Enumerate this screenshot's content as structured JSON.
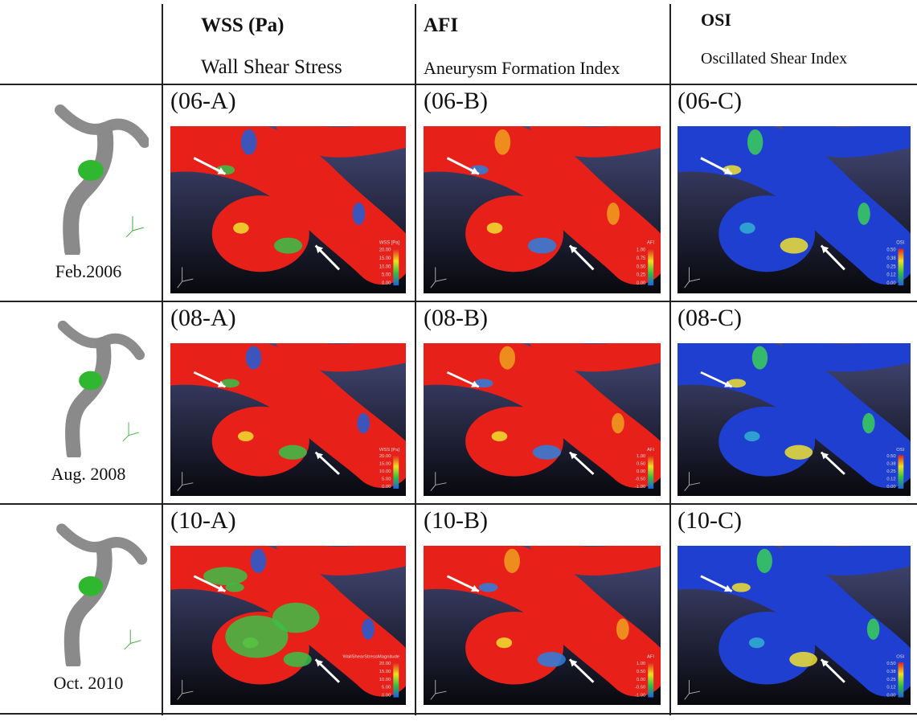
{
  "header": {
    "columns": [
      {
        "title": "WSS (Pa)",
        "subtitle": "Wall Shear Stress"
      },
      {
        "title": "AFI",
        "subtitle": "Aneurysm Formation Index"
      },
      {
        "title": "OSI",
        "subtitle": "Oscillated Shear Index"
      }
    ]
  },
  "rows": [
    {
      "date": "Feb.2006",
      "panels": [
        {
          "label": "(06-A)",
          "legend_title": "WSS [Pa]",
          "legend": [
            "20.00",
            "15.00",
            "10.00",
            "5.00",
            "0.00"
          ]
        },
        {
          "label": "(06-B)",
          "legend_title": "AFI",
          "legend": [
            "1.00",
            "0.75",
            "0.50",
            "0.25",
            "0.00"
          ]
        },
        {
          "label": "(06-C)",
          "legend_title": "OSI",
          "legend": [
            "0.50",
            "0.38",
            "0.25",
            "0.12",
            "0.00"
          ]
        }
      ]
    },
    {
      "date": "Aug. 2008",
      "panels": [
        {
          "label": "(08-A)",
          "legend_title": "WSS [Pa]",
          "legend": [
            "20.00",
            "15.00",
            "10.00",
            "5.00",
            "0.00"
          ]
        },
        {
          "label": "(08-B)",
          "legend_title": "AFI",
          "legend": [
            "1.00",
            "0.50",
            "0.00",
            "-0.50",
            "-1.00"
          ]
        },
        {
          "label": "(08-C)",
          "legend_title": "OSI",
          "legend": [
            "0.50",
            "0.38",
            "0.25",
            "0.12",
            "0.00"
          ]
        }
      ]
    },
    {
      "date": "Oct. 2010",
      "panels": [
        {
          "label": "(10-A)",
          "legend_title": "WallShearStressMagnitude",
          "legend": [
            "20.00",
            "15.00",
            "10.00",
            "5.00",
            "0.00"
          ]
        },
        {
          "label": "(10-B)",
          "legend_title": "AFI",
          "legend": [
            "1.00",
            "0.50",
            "0.00",
            "-0.50",
            "-1.00"
          ]
        },
        {
          "label": "(10-C)",
          "legend_title": "OSI",
          "legend": [
            "0.50",
            "0.38",
            "0.25",
            "0.12",
            "0.00"
          ]
        }
      ]
    }
  ]
}
